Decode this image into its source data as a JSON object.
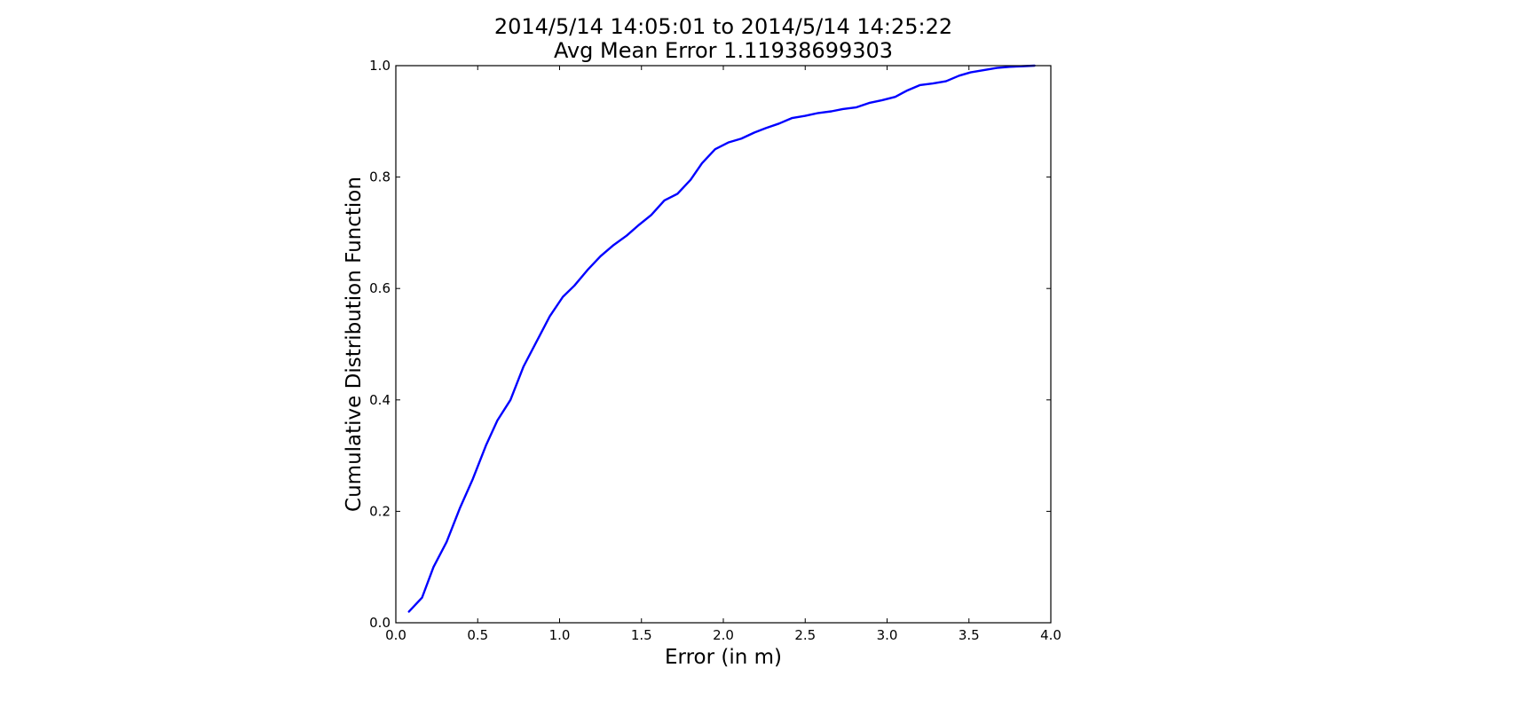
{
  "chart_data": {
    "type": "line",
    "title": "2014/5/14  14:05:01 to 2014/5/14  14:25:22",
    "subtitle": "Avg Mean Error 1.11938699303",
    "xlabel": "Error (in m)",
    "ylabel": "Cumulative Distribution Function",
    "xlim": [
      0.0,
      4.0
    ],
    "ylim": [
      0.0,
      1.0
    ],
    "grid": false,
    "xticks": [
      "0.0",
      "0.5",
      "1.0",
      "1.5",
      "2.0",
      "2.5",
      "3.0",
      "3.5",
      "4.0"
    ],
    "yticks": [
      "0.0",
      "0.2",
      "0.4",
      "0.6",
      "0.8",
      "1.0"
    ],
    "series": [
      {
        "color": "#0000ff",
        "x": [
          0.08,
          0.16,
          0.23,
          0.31,
          0.39,
          0.47,
          0.55,
          0.62,
          0.7,
          0.78,
          0.86,
          0.94,
          1.02,
          1.09,
          1.17,
          1.25,
          1.33,
          1.41,
          1.48,
          1.56,
          1.64,
          1.72,
          1.8,
          1.87,
          1.95,
          2.03,
          2.11,
          2.19,
          2.26,
          2.34,
          2.42,
          2.5,
          2.58,
          2.66,
          2.73,
          2.81,
          2.89,
          2.97,
          3.05,
          3.12,
          3.2,
          3.28,
          3.36,
          3.44,
          3.51,
          3.59,
          3.67,
          3.75,
          3.83,
          3.9
        ],
        "y": [
          0.02,
          0.045,
          0.1,
          0.145,
          0.205,
          0.258,
          0.318,
          0.363,
          0.4,
          0.46,
          0.505,
          0.55,
          0.585,
          0.605,
          0.633,
          0.658,
          0.678,
          0.695,
          0.713,
          0.732,
          0.758,
          0.77,
          0.795,
          0.825,
          0.85,
          0.862,
          0.869,
          0.88,
          0.888,
          0.896,
          0.906,
          0.91,
          0.915,
          0.918,
          0.922,
          0.925,
          0.933,
          0.938,
          0.944,
          0.955,
          0.965,
          0.968,
          0.972,
          0.982,
          0.988,
          0.992,
          0.996,
          0.998,
          0.999,
          1.0
        ]
      }
    ]
  }
}
